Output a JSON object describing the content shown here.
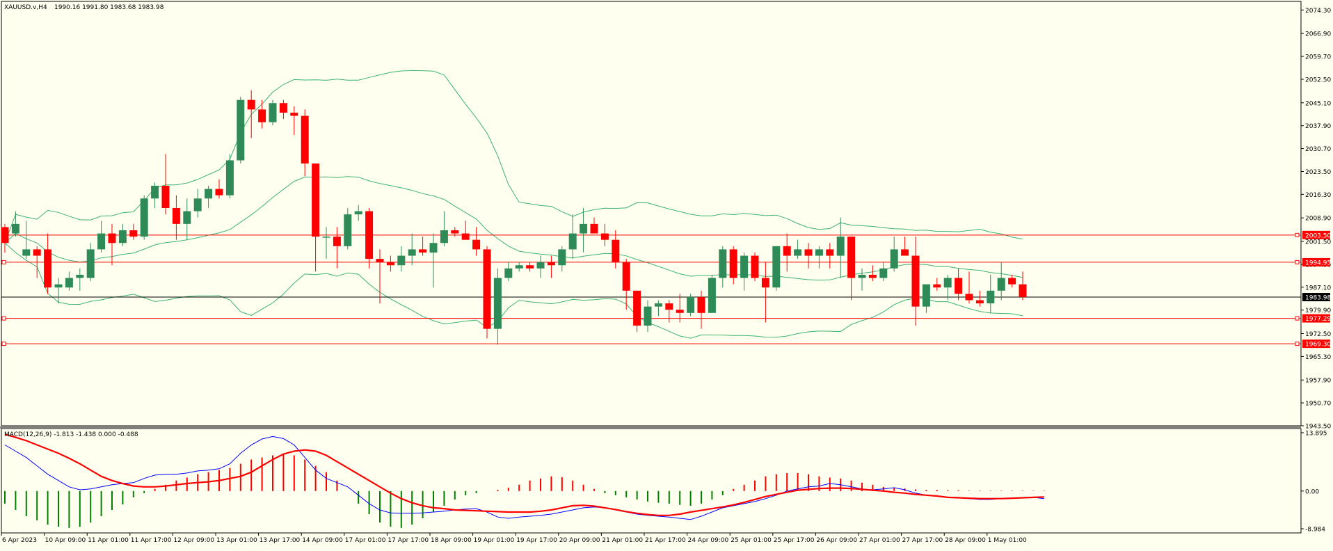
{
  "header": {
    "symbol": "XAUUSD.v,H4",
    "ohlc": "1990.16 1991.80 1983.68 1983.98",
    "macd_label": "MACD(12,26,9) -1.813 -1.438 0.000 -0.488"
  },
  "colors": {
    "background": "#fffff0",
    "bull": "#2e8b57",
    "bear": "#ff0000",
    "bollinger": "#3cb371",
    "hline": "#ff0000",
    "current_line": "#000000",
    "macd_line": "#0000ff",
    "signal_line": "#ff0000",
    "hist_pos": "#ff0000",
    "hist_neg": "#008000"
  },
  "chart_data": [
    {
      "type": "candlestick",
      "title": "XAUUSD.v,H4",
      "ylim": [
        1943.5,
        2077
      ],
      "y_ticks": [
        "2074.30",
        "2066.90",
        "2059.70",
        "2052.50",
        "2045.10",
        "2037.90",
        "2030.70",
        "2023.50",
        "2016.30",
        "2008.90",
        "2001.50",
        "1994.30",
        "1987.10",
        "1979.90",
        "1972.50",
        "1965.30",
        "1957.90",
        "1950.70",
        "1943.50"
      ],
      "price_labels": [
        {
          "text": "2003.50",
          "value": 2003.5,
          "bg": "#ff0000"
        },
        {
          "text": "1994.95",
          "value": 1994.95,
          "bg": "#ff0000"
        },
        {
          "text": "1983.98",
          "value": 1983.98,
          "bg": "#000000"
        },
        {
          "text": "1977.29",
          "value": 1977.29,
          "bg": "#ff0000"
        },
        {
          "text": "1969.30",
          "value": 1969.3,
          "bg": "#ff0000"
        }
      ],
      "hlines": [
        2003.5,
        1994.95,
        1977.29,
        1969.3
      ],
      "current_price": 1983.98,
      "x_labels": [
        {
          "text": "6 Apr 2023",
          "index": 0
        },
        {
          "text": "10 Apr 09:00",
          "index": 4
        },
        {
          "text": "11 Apr 01:00",
          "index": 8
        },
        {
          "text": "11 Apr 17:00",
          "index": 12
        },
        {
          "text": "12 Apr 09:00",
          "index": 16
        },
        {
          "text": "13 Apr 01:00",
          "index": 20
        },
        {
          "text": "13 Apr 17:00",
          "index": 24
        },
        {
          "text": "14 Apr 09:00",
          "index": 28
        },
        {
          "text": "17 Apr 01:00",
          "index": 32
        },
        {
          "text": "17 Apr 17:00",
          "index": 36
        },
        {
          "text": "18 Apr 09:00",
          "index": 40
        },
        {
          "text": "19 Apr 01:00",
          "index": 44
        },
        {
          "text": "19 Apr 17:00",
          "index": 48
        },
        {
          "text": "20 Apr 09:00",
          "index": 52
        },
        {
          "text": "21 Apr 01:00",
          "index": 56
        },
        {
          "text": "21 Apr 17:00",
          "index": 60
        },
        {
          "text": "24 Apr 09:00",
          "index": 64
        },
        {
          "text": "25 Apr 01:00",
          "index": 68
        },
        {
          "text": "25 Apr 17:00",
          "index": 72
        },
        {
          "text": "26 Apr 09:00",
          "index": 76
        },
        {
          "text": "27 Apr 01:00",
          "index": 80
        },
        {
          "text": "27 Apr 17:00",
          "index": 84
        },
        {
          "text": "28 Apr 09:00",
          "index": 88
        },
        {
          "text": "1 May 01:00",
          "index": 92
        }
      ],
      "candles": [
        [
          2006,
          2007,
          1998,
          2001
        ],
        [
          2004,
          2011,
          2003,
          2007
        ],
        [
          1997,
          2008,
          1996,
          1999
        ],
        [
          1999,
          2000,
          1990,
          1997
        ],
        [
          1999,
          2004,
          1985,
          1987
        ],
        [
          1987,
          1990,
          1982,
          1988
        ],
        [
          1987,
          1992,
          1986,
          1990
        ],
        [
          1990,
          1993,
          1986,
          1991
        ],
        [
          1990,
          2001,
          1989,
          1999
        ],
        [
          1999,
          2008,
          1998,
          2004
        ],
        [
          2004,
          2007,
          1994,
          2001
        ],
        [
          2001,
          2007,
          2000,
          2005
        ],
        [
          2005,
          2007,
          2002,
          2003
        ],
        [
          2003,
          2016,
          2002,
          2015
        ],
        [
          2015,
          2020,
          2012,
          2019
        ],
        [
          2019,
          2029,
          2010,
          2012
        ],
        [
          2012,
          2016,
          2002,
          2007
        ],
        [
          2007,
          2015,
          2002,
          2011
        ],
        [
          2011,
          2018,
          2009,
          2015
        ],
        [
          2015,
          2019,
          2012,
          2018
        ],
        [
          2018,
          2021,
          2015,
          2016
        ],
        [
          2016,
          2029,
          2015,
          2027
        ],
        [
          2027,
          2047,
          2026,
          2046
        ],
        [
          2046,
          2049,
          2034,
          2043
        ],
        [
          2043,
          2046,
          2037,
          2039
        ],
        [
          2039,
          2046,
          2038,
          2045
        ],
        [
          2045,
          2046,
          2040,
          2042
        ],
        [
          2042,
          2044,
          2035,
          2041
        ],
        [
          2041,
          2043,
          2022,
          2026
        ],
        [
          2026,
          2026,
          1992,
          2003
        ],
        [
          2003,
          2006,
          1996,
          2003
        ],
        [
          2003,
          2006,
          1993,
          2000
        ],
        [
          2000,
          2012,
          1999,
          2010
        ],
        [
          2010,
          2013,
          2008,
          2011
        ],
        [
          2011,
          2012,
          1993,
          1996
        ],
        [
          1996,
          1999,
          1982,
          1995
        ],
        [
          1995,
          1997,
          1992,
          1994
        ],
        [
          1994,
          2000,
          1992,
          1997
        ],
        [
          1997,
          2004,
          1994,
          1999
        ],
        [
          1999,
          2003,
          1997,
          1998
        ],
        [
          1998,
          2004,
          1987,
          2001
        ],
        [
          2001,
          2011,
          2000,
          2005
        ],
        [
          2005,
          2006,
          2003,
          2004
        ],
        [
          2004,
          2008,
          2002,
          2002
        ],
        [
          2002,
          2006,
          1997,
          1999
        ],
        [
          1999,
          2000,
          1971,
          1974
        ],
        [
          1974,
          1993,
          1969,
          1990
        ],
        [
          1990,
          1995,
          1989,
          1993
        ],
        [
          1993,
          1995,
          1992,
          1994
        ],
        [
          1994,
          1995,
          1992,
          1993
        ],
        [
          1993,
          1997,
          1990,
          1995
        ],
        [
          1995,
          1997,
          1990,
          1994
        ],
        [
          1994,
          2000,
          1992,
          1999
        ],
        [
          1999,
          2010,
          1996,
          2004
        ],
        [
          2004,
          2012,
          1998,
          2007
        ],
        [
          2007,
          2009,
          2004,
          2004
        ],
        [
          2004,
          2007,
          2000,
          2002
        ],
        [
          2002,
          2005,
          1993,
          1995
        ],
        [
          1995,
          1996,
          1980,
          1986
        ],
        [
          1986,
          1986,
          1973,
          1975
        ],
        [
          1975,
          1983,
          1973,
          1981
        ],
        [
          1981,
          1983,
          1978,
          1982
        ],
        [
          1982,
          1983,
          1976,
          1980
        ],
        [
          1980,
          1985,
          1976,
          1979
        ],
        [
          1979,
          1985,
          1978,
          1984
        ],
        [
          1984,
          1986,
          1974,
          1979
        ],
        [
          1979,
          1991,
          1979,
          1990
        ],
        [
          1990,
          2000,
          1987,
          1999
        ],
        [
          1999,
          2000,
          1988,
          1990
        ],
        [
          1990,
          1998,
          1986,
          1997
        ],
        [
          1997,
          1998,
          1989,
          1990
        ],
        [
          1990,
          1995,
          1976,
          1987
        ],
        [
          1987,
          2000,
          1986,
          2000
        ],
        [
          2000,
          2004,
          1992,
          1997
        ],
        [
          1997,
          2002,
          1996,
          1999
        ],
        [
          1999,
          2001,
          1993,
          1997
        ],
        [
          1997,
          2000,
          1993,
          1999
        ],
        [
          1999,
          2001,
          1993,
          1997
        ],
        [
          1997,
          2009,
          1990,
          2003
        ],
        [
          2003,
          2003,
          1983,
          1990
        ],
        [
          1990,
          1993,
          1986,
          1991
        ],
        [
          1991,
          1994,
          1989,
          1990
        ],
        [
          1990,
          1995,
          1989,
          1993
        ],
        [
          1993,
          2003,
          1992,
          1999
        ],
        [
          1999,
          2003,
          1997,
          1997
        ],
        [
          1997,
          2003,
          1975,
          1981
        ],
        [
          1981,
          1987,
          1979,
          1988
        ],
        [
          1988,
          1990,
          1986,
          1987
        ],
        [
          1987,
          1991,
          1983,
          1990
        ],
        [
          1990,
          1993,
          1983,
          1985
        ],
        [
          1985,
          1992,
          1982,
          1983
        ],
        [
          1983,
          1986,
          1981,
          1982
        ],
        [
          1982,
          1991,
          1979,
          1986
        ],
        [
          1986,
          1995,
          1983,
          1990
        ],
        [
          1990,
          1991,
          1987,
          1988
        ],
        [
          1988,
          1992,
          1983,
          1984
        ]
      ]
    },
    {
      "type": "macd",
      "title": "MACD(12,26,9)",
      "ylim": [
        -8.984,
        13.895
      ],
      "y_ticks": [
        "13.895",
        "0.00",
        "-8.984"
      ],
      "macd": [
        11,
        9.5,
        8,
        6,
        4,
        2.5,
        1,
        0.3,
        0.5,
        1,
        1.5,
        1.8,
        2,
        3,
        3.8,
        4,
        4,
        4.3,
        4.8,
        5,
        5.3,
        6.5,
        9,
        11,
        12.4,
        13,
        12.5,
        11,
        8,
        5,
        3,
        2,
        1,
        -1,
        -3,
        -4.5,
        -5.2,
        -5.3,
        -5.3,
        -5.2,
        -5,
        -4.8,
        -4.5,
        -4.3,
        -4.2,
        -5,
        -6.2,
        -6.5,
        -6.2,
        -6,
        -5.8,
        -5.5,
        -5,
        -4.5,
        -4,
        -3.8,
        -4,
        -4.5,
        -5,
        -5.5,
        -5.8,
        -6,
        -6.2,
        -6.5,
        -6.8,
        -6,
        -5,
        -4,
        -3.5,
        -3,
        -2.5,
        -1.8,
        -1,
        0,
        0.5,
        1,
        1.2,
        1.8,
        1.5,
        1,
        0.5,
        0.3,
        0.5,
        0.8,
        0.3,
        -0.5,
        -1,
        -1.2,
        -1.5,
        -1.5,
        -1.8,
        -2,
        -2,
        -1.8,
        -1.6,
        -1.6,
        -1.5,
        -1.8
      ],
      "signal": [
        13.5,
        12.8,
        12,
        11,
        10,
        9,
        7.8,
        6.5,
        5,
        3.5,
        2.5,
        1.8,
        1.2,
        1,
        1,
        1.2,
        1.5,
        1.8,
        2,
        2.2,
        2.5,
        3,
        3.5,
        4.5,
        6,
        7.5,
        8.8,
        9.5,
        9.8,
        9.5,
        8.5,
        7,
        5.5,
        4,
        2.5,
        1,
        -0.5,
        -1.8,
        -2.8,
        -3.5,
        -4,
        -4.2,
        -4.5,
        -4.6,
        -4.7,
        -4.8,
        -4.9,
        -5,
        -5,
        -5,
        -4.8,
        -4.5,
        -4,
        -3.5,
        -3.4,
        -3.6,
        -4,
        -4.4,
        -4.9,
        -5.3,
        -5.6,
        -5.8,
        -5.8,
        -5.5,
        -5,
        -4.6,
        -4.2,
        -3.8,
        -3.3,
        -2.7,
        -2,
        -1.3,
        -0.8,
        -0.3,
        0.2,
        0.4,
        0.6,
        0.7,
        0.7,
        0.6,
        0.4,
        0.2,
        0,
        -0.3,
        -0.5,
        -0.8,
        -1,
        -1.2,
        -1.5,
        -1.6,
        -1.7,
        -1.8,
        -1.8,
        -1.8,
        -1.7,
        -1.6,
        -1.5,
        -1.4
      ],
      "histogram": [
        -3,
        -4.5,
        -6,
        -7,
        -8,
        -8.5,
        -8.8,
        -8.5,
        -7.5,
        -6,
        -4.5,
        -3.2,
        -1.5,
        -0.5,
        0.5,
        1.5,
        2.5,
        3.2,
        4,
        4.5,
        5,
        5.5,
        6.5,
        7.5,
        8,
        8.5,
        8.8,
        8.5,
        7.5,
        6,
        4.5,
        2.5,
        0,
        -3,
        -5.5,
        -7.5,
        -8.5,
        -8.8,
        -8,
        -6.5,
        -5,
        -3.5,
        -2,
        -1,
        -0.5,
        0,
        0.3,
        0.8,
        1.5,
        2.5,
        3,
        3.5,
        3.3,
        2.5,
        1.5,
        0.5,
        -0.5,
        -1,
        -1.5,
        -2,
        -2.5,
        -2.8,
        -3,
        -3.3,
        -3.5,
        -3,
        -2,
        -1,
        0.5,
        1.5,
        2.5,
        3.5,
        4,
        4.3,
        4.3,
        4,
        3.5,
        3.2,
        3,
        2.5,
        2,
        1.5,
        1,
        0.8,
        0.6,
        0.4,
        0.3,
        0.3,
        0.2,
        0.2,
        0.1,
        0.1,
        0.1,
        0.1,
        0.1,
        0.1,
        0.1,
        0.1
      ],
      "hist_colors": "positive=red, negative=green"
    }
  ]
}
